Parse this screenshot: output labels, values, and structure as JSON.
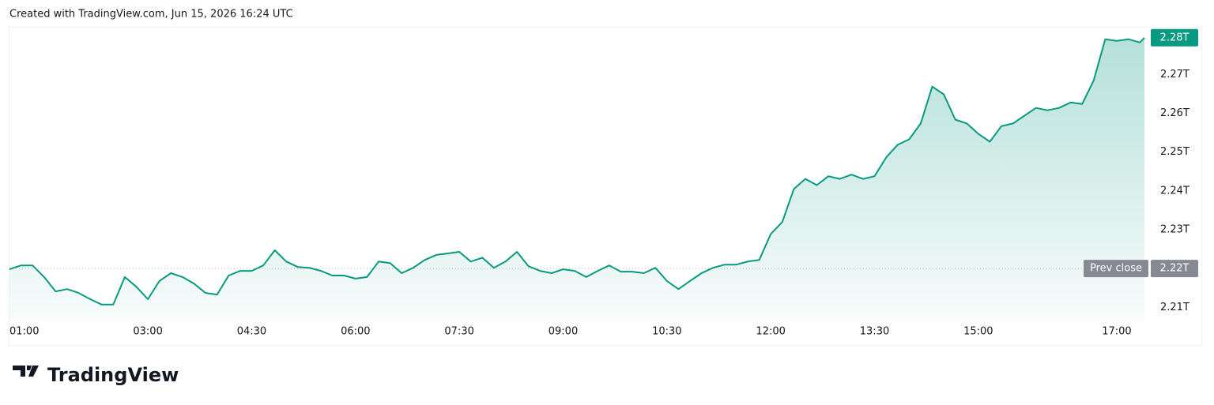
{
  "header": {
    "text": "Created with TradingView.com, Jun 15, 2026 16:24 UTC"
  },
  "logo": {
    "text": "TradingView"
  },
  "chart_data": {
    "type": "area",
    "color": "#089981",
    "x": [
      "01:00",
      "01:10",
      "01:20",
      "01:30",
      "01:40",
      "01:50",
      "02:00",
      "02:10",
      "02:20",
      "02:30",
      "02:40",
      "02:50",
      "03:00",
      "03:10",
      "03:20",
      "03:30",
      "03:40",
      "03:50",
      "04:00",
      "04:10",
      "04:20",
      "04:30",
      "04:40",
      "04:50",
      "05:00",
      "05:10",
      "05:20",
      "05:30",
      "05:40",
      "05:50",
      "06:00",
      "06:10",
      "06:20",
      "06:30",
      "06:40",
      "06:50",
      "07:00",
      "07:10",
      "07:20",
      "07:30",
      "07:40",
      "07:50",
      "08:00",
      "08:10",
      "08:20",
      "08:30",
      "08:40",
      "08:50",
      "09:00",
      "09:10",
      "09:20",
      "09:30",
      "09:40",
      "09:50",
      "10:00",
      "10:10",
      "10:20",
      "10:30",
      "10:40",
      "10:50",
      "11:00",
      "11:10",
      "11:20",
      "11:30",
      "11:40",
      "11:50",
      "12:00",
      "12:10",
      "12:20",
      "12:30",
      "12:40",
      "12:50",
      "13:00",
      "13:10",
      "13:20",
      "13:30",
      "13:40",
      "13:50",
      "14:00",
      "14:10",
      "14:20",
      "14:30",
      "14:40",
      "14:50",
      "15:00",
      "15:10",
      "15:20",
      "15:30",
      "15:40",
      "15:50",
      "16:00",
      "16:10",
      "16:20",
      "16:30",
      "16:40",
      "16:50",
      "17:00",
      "17:10",
      "17:20",
      "17:24"
    ],
    "values": [
      2.2198,
      2.2208,
      2.2208,
      2.2178,
      2.2141,
      2.2147,
      2.2137,
      2.2121,
      2.2107,
      2.2107,
      2.2178,
      2.2153,
      2.2121,
      2.2168,
      2.2188,
      2.2178,
      2.2161,
      2.2137,
      2.2133,
      2.2182,
      2.2194,
      2.2194,
      2.2208,
      2.2247,
      2.2218,
      2.2204,
      2.2202,
      2.2194,
      2.2182,
      2.2182,
      2.2174,
      2.2178,
      2.2218,
      2.2214,
      2.2188,
      2.2202,
      2.2222,
      2.2235,
      2.2239,
      2.2243,
      2.2218,
      2.2228,
      2.2202,
      2.2218,
      2.2243,
      2.2206,
      2.2194,
      2.2188,
      2.2198,
      2.2194,
      2.2178,
      2.2194,
      2.2208,
      2.2192,
      2.2192,
      2.2188,
      2.2202,
      2.2168,
      2.2147,
      2.2168,
      2.2188,
      2.2202,
      2.221,
      2.221,
      2.2218,
      2.2222,
      2.2289,
      2.232,
      2.2405,
      2.2431,
      2.2415,
      2.2438,
      2.2431,
      2.2442,
      2.2431,
      2.2438,
      2.2486,
      2.2519,
      2.2533,
      2.2574,
      2.2669,
      2.2649,
      2.2584,
      2.2574,
      2.2547,
      2.2527,
      2.2567,
      2.2574,
      2.2594,
      2.2614,
      2.2608,
      2.2614,
      2.2628,
      2.2624,
      2.2685,
      2.2791,
      2.2787,
      2.2791,
      2.2783,
      2.2795
    ],
    "last_value_label": "2.28T",
    "prev_close": {
      "name": "Prev close",
      "value": 2.22,
      "label": "2.22T"
    },
    "xlim": [
      "01:00",
      "17:24"
    ],
    "xticks": [
      "01:00",
      "03:00",
      "04:30",
      "06:00",
      "07:30",
      "09:00",
      "10:30",
      "12:00",
      "13:30",
      "15:00",
      "17:00"
    ],
    "ylim": [
      2.2068,
      2.2821
    ],
    "yticks": [
      {
        "value": 2.21,
        "label": "2.21T"
      },
      {
        "value": 2.23,
        "label": "2.23T"
      },
      {
        "value": 2.24,
        "label": "2.24T"
      },
      {
        "value": 2.25,
        "label": "2.25T"
      },
      {
        "value": 2.26,
        "label": "2.26T"
      },
      {
        "value": 2.27,
        "label": "2.27T"
      }
    ],
    "grid": false
  }
}
